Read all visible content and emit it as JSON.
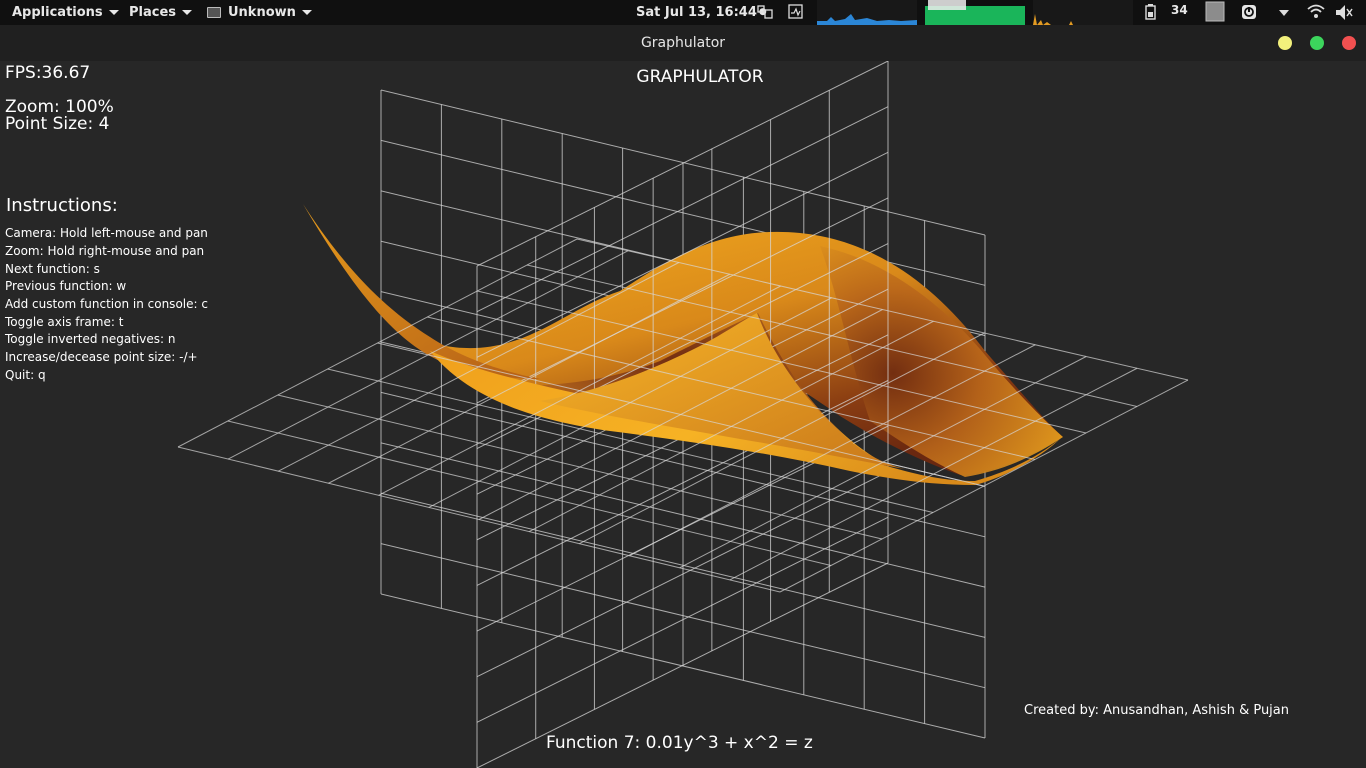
{
  "panel": {
    "menus": [
      {
        "label": "Applications"
      },
      {
        "label": "Places"
      },
      {
        "label": "Unknown"
      }
    ],
    "clock": "Sat Jul 13, 16:44",
    "clock_dot": "●",
    "battery_level": "34"
  },
  "window": {
    "title": "Graphulator",
    "buttons": {
      "minimize_color": "#f2f07c",
      "maximize_color": "#3cd55c",
      "close_color": "#f25050"
    }
  },
  "app": {
    "heading": "GRAPHULATOR",
    "fps": "FPS:36.67",
    "zoom": "Zoom: 100%",
    "point_size": "Point Size: 4",
    "instructions_title": "Instructions:",
    "instructions": [
      "Camera:  Hold left-mouse and pan",
      "Zoom:  Hold right-mouse and pan",
      "Next function:  s",
      "Previous function:  w",
      "Add custom function in console:  c",
      "Toggle axis frame:  t",
      "Toggle inverted negatives:  n",
      "Increase/decease point size:  -/+",
      "Quit: q"
    ],
    "credits": "Created by: Anusandhan, Ashish & Pujan",
    "function_label": "Function 7: 0.01y^3 + x^2 = z",
    "surface_color": "#f0a41c",
    "surface_shadow": "#7a2e10",
    "grid_color": "#d8d8d8"
  }
}
